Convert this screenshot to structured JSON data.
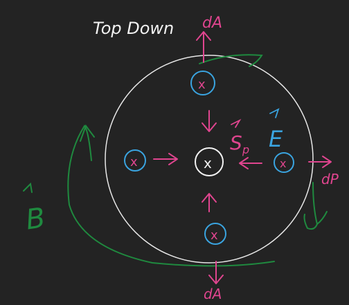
{
  "title": "Top Down",
  "labels": {
    "dA_top": "dA",
    "dA_bottom": "dA",
    "dA_right": "dP",
    "E": "E",
    "Sp": "S",
    "Sp_sub": "p",
    "B": "B"
  },
  "symbols": {
    "into_page": "x"
  },
  "colors": {
    "background": "#232323",
    "circle": "#e8e8e8",
    "text": "#f2f2f2",
    "pink": "#e0458f",
    "blue": "#3aa4e0",
    "green": "#1f8a3f"
  }
}
